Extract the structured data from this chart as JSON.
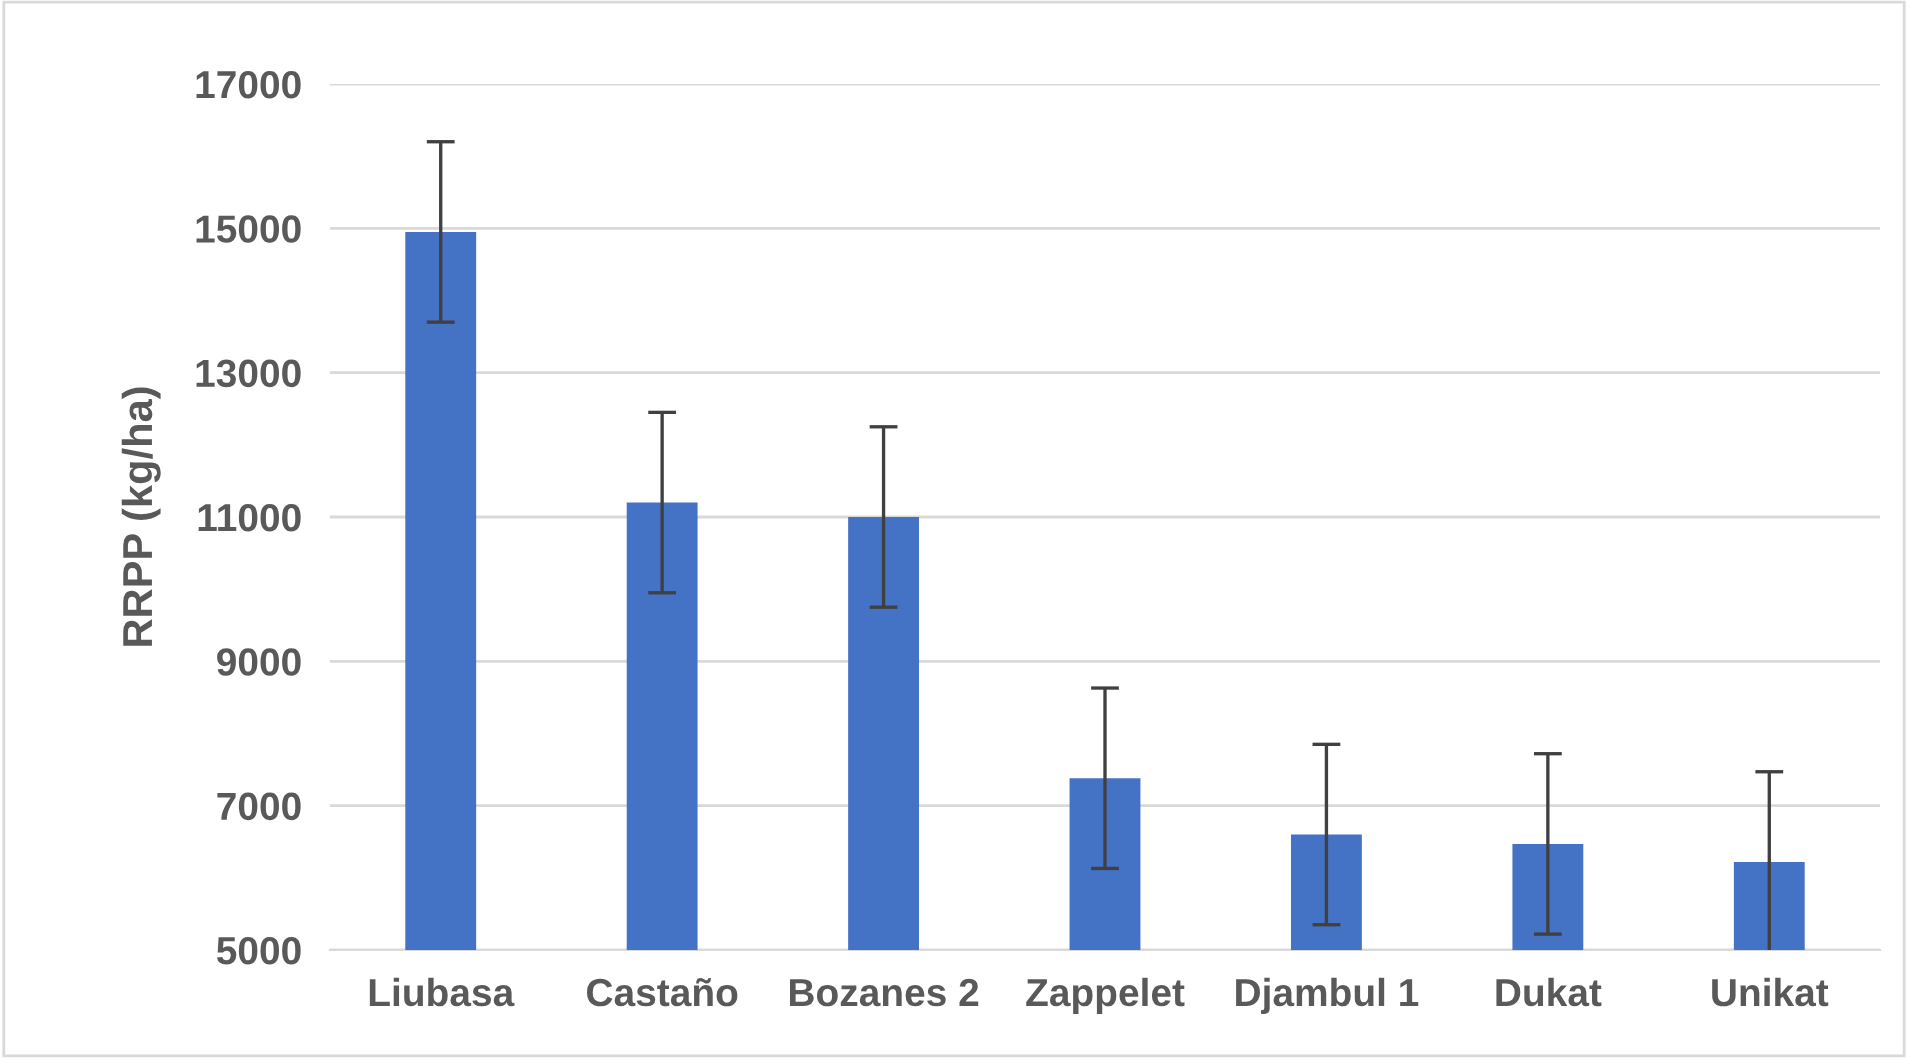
{
  "chart_data": {
    "type": "bar",
    "ylabel": "RRPP (kg/ha)",
    "categories": [
      "Liubasa",
      "Castaño",
      "Bozanes 2",
      "Zappelet",
      "Djambul 1",
      "Dukat",
      "Unikat"
    ],
    "values": [
      14950,
      11200,
      11000,
      7380,
      6600,
      6470,
      6220
    ],
    "errors": [
      1250,
      1250,
      1250,
      1250,
      1250,
      1250,
      1250
    ],
    "color": "#4472c4",
    "ylim": [
      5000,
      17000
    ],
    "yticks": [
      5000,
      7000,
      9000,
      11000,
      13000,
      15000,
      17000
    ],
    "grid": "y"
  }
}
